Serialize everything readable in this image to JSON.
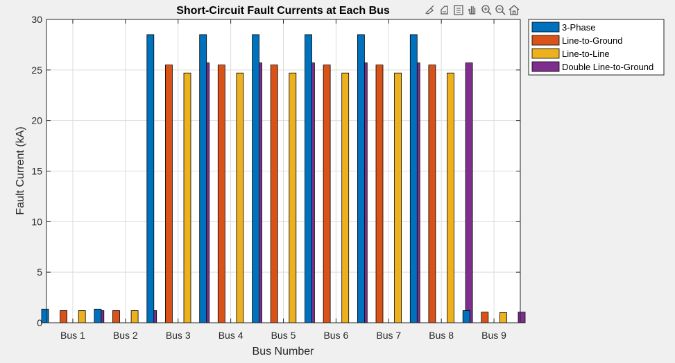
{
  "chart_data": {
    "type": "bar",
    "title": "Short-Circuit Fault Currents at Each Bus",
    "xlabel": "Bus Number",
    "ylabel": "Fault Current (kA)",
    "ylim": [
      0,
      30
    ],
    "yticks": [
      0,
      5,
      10,
      15,
      20,
      25,
      30
    ],
    "grid": true,
    "legend_position": "outside top-right",
    "categories": [
      "Bus 1",
      "Bus 2",
      "Bus 3",
      "Bus 4",
      "Bus 5",
      "Bus 6",
      "Bus 7",
      "Bus 8",
      "Bus 9"
    ],
    "series": [
      {
        "name": "3-Phase",
        "color": "#0072BD",
        "values": [
          1.35,
          1.35,
          28.5,
          28.5,
          28.5,
          28.5,
          28.5,
          28.5,
          1.2
        ]
      },
      {
        "name": "Line-to-Ground",
        "color": "#D95319",
        "values": [
          1.2,
          1.2,
          25.5,
          25.5,
          25.5,
          25.5,
          25.5,
          25.5,
          1.05
        ]
      },
      {
        "name": "Line-to-Line",
        "color": "#EDB120",
        "values": [
          1.2,
          1.2,
          24.7,
          24.7,
          24.7,
          24.7,
          24.7,
          24.7,
          1.0
        ]
      },
      {
        "name": "Double Line-to-Ground",
        "color": "#7E2F8E",
        "values": [
          1.2,
          1.2,
          25.7,
          25.7,
          25.7,
          25.7,
          25.7,
          25.7,
          1.05
        ]
      }
    ]
  },
  "toolbar": {
    "icons": [
      "brush-icon",
      "data-tips-icon",
      "legend-toggle-icon",
      "pan-icon",
      "zoom-in-icon",
      "zoom-out-icon",
      "home-icon"
    ]
  }
}
